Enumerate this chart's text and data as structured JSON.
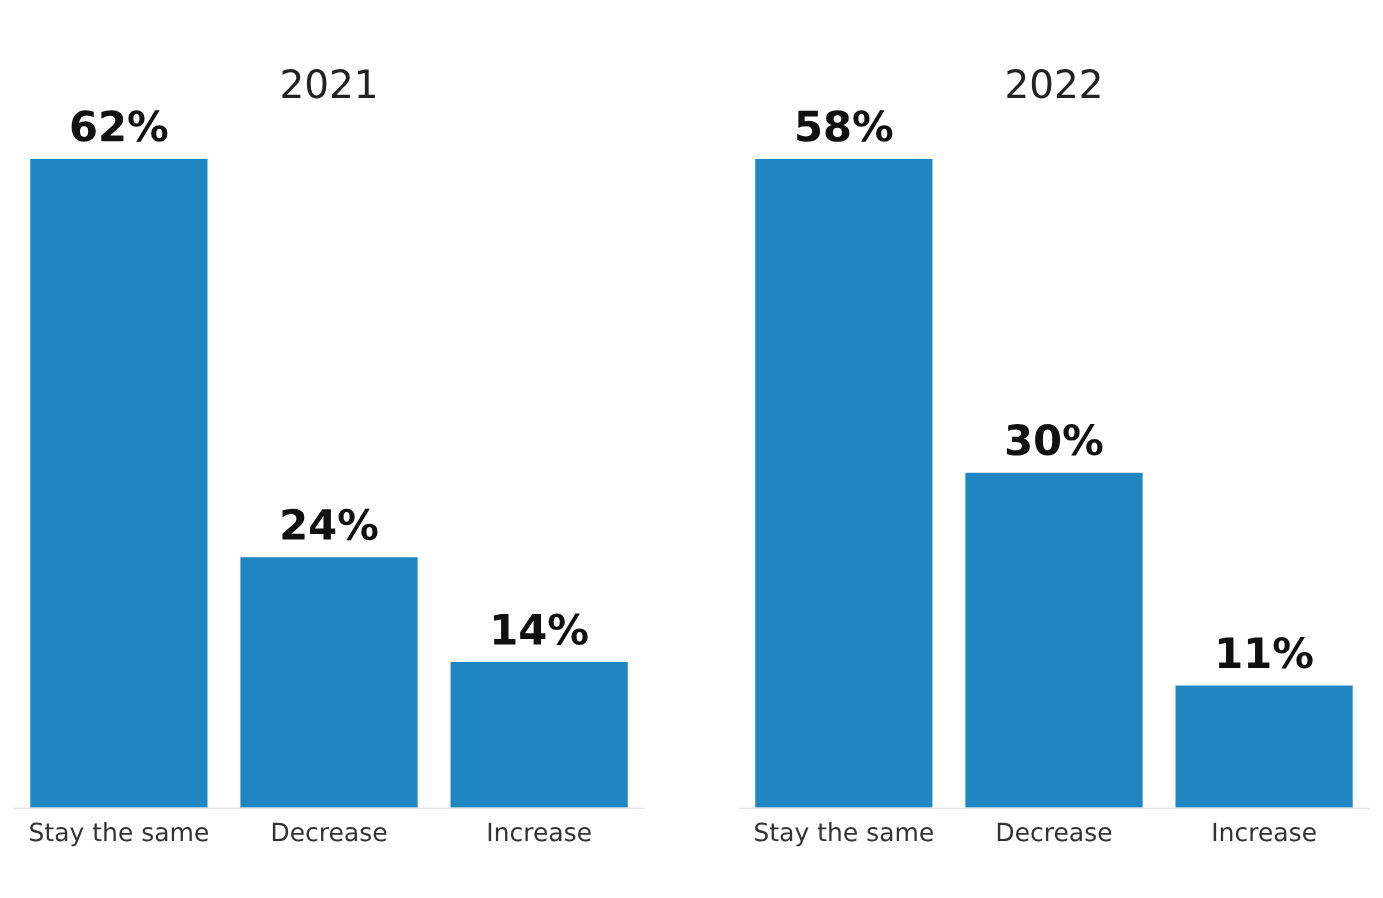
{
  "chart_data": [
    {
      "type": "bar",
      "title": "2021",
      "categories": [
        "Stay the same",
        "Decrease",
        "Increase"
      ],
      "values": [
        62,
        24,
        14
      ],
      "value_labels": [
        "62%",
        "24%",
        "14%"
      ],
      "color": "#1f86c2",
      "tick_labels": "x",
      "grid": false
    },
    {
      "type": "bar",
      "title": "2022",
      "categories": [
        "Stay the same",
        "Decrease",
        "Increase"
      ],
      "values": [
        58,
        30,
        11
      ],
      "value_labels": [
        "58%",
        "30%",
        "11%"
      ],
      "color": "#1f86c2",
      "tick_labels": "x",
      "grid": false
    }
  ]
}
